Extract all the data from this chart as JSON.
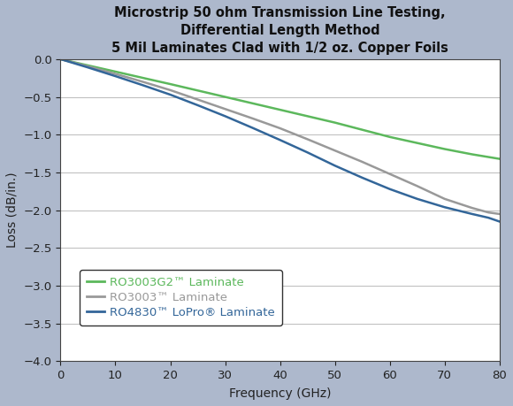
{
  "title": "Microstrip 50 ohm Transmission Line Testing,\nDifferential Length Method\n5 Mil Laminates Clad with 1/2 oz. Copper Foils",
  "xlabel": "Frequency (GHz)",
  "ylabel": "Loss (dB/in.)",
  "xlim": [
    0,
    80
  ],
  "ylim": [
    -4.0,
    0
  ],
  "xticks": [
    0,
    10,
    20,
    30,
    40,
    50,
    60,
    70,
    80
  ],
  "yticks": [
    0,
    -0.5,
    -1.0,
    -1.5,
    -2.0,
    -2.5,
    -3.0,
    -3.5,
    -4.0
  ],
  "background_color": "#adb8cc",
  "plot_bg_color": "#ffffff",
  "grid_color": "#bbbbbb",
  "lines": [
    {
      "label": "RO3003G2™ Laminate",
      "color": "#5cb85c",
      "linewidth": 1.8,
      "x": [
        0,
        5,
        10,
        15,
        20,
        25,
        30,
        35,
        40,
        45,
        50,
        55,
        60,
        65,
        70,
        75,
        80
      ],
      "y": [
        0,
        -0.083,
        -0.165,
        -0.248,
        -0.33,
        -0.415,
        -0.5,
        -0.585,
        -0.67,
        -0.755,
        -0.84,
        -0.935,
        -1.03,
        -1.11,
        -1.19,
        -1.26,
        -1.32
      ]
    },
    {
      "label": "RO3003™ Laminate",
      "color": "#999999",
      "linewidth": 1.8,
      "x": [
        0,
        5,
        10,
        15,
        20,
        25,
        30,
        35,
        40,
        45,
        50,
        55,
        60,
        65,
        70,
        75,
        78,
        80
      ],
      "y": [
        0,
        -0.095,
        -0.195,
        -0.3,
        -0.41,
        -0.535,
        -0.66,
        -0.785,
        -0.915,
        -1.06,
        -1.21,
        -1.36,
        -1.52,
        -1.68,
        -1.85,
        -1.97,
        -2.03,
        -2.05
      ]
    },
    {
      "label": "RO4830™ LoPro® Laminate",
      "color": "#336699",
      "linewidth": 1.8,
      "x": [
        0,
        5,
        10,
        15,
        20,
        25,
        30,
        35,
        40,
        45,
        50,
        55,
        60,
        65,
        70,
        75,
        78,
        80
      ],
      "y": [
        0,
        -0.11,
        -0.225,
        -0.345,
        -0.47,
        -0.61,
        -0.755,
        -0.91,
        -1.07,
        -1.235,
        -1.41,
        -1.57,
        -1.72,
        -1.85,
        -1.96,
        -2.05,
        -2.1,
        -2.15
      ]
    }
  ],
  "title_fontsize": 10.5,
  "axis_label_fontsize": 10,
  "tick_fontsize": 9.5,
  "legend_fontsize": 9.5
}
